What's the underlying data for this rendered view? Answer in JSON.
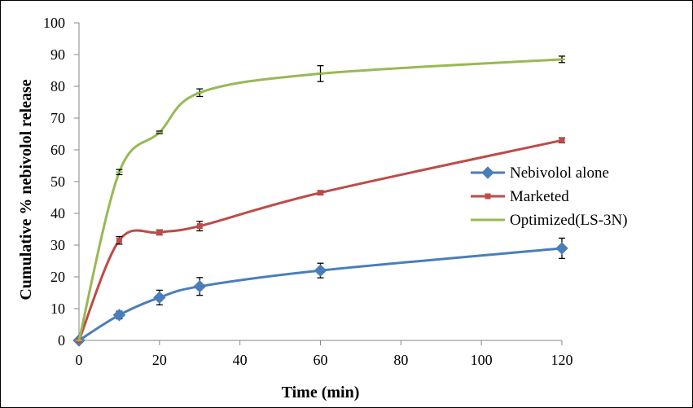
{
  "chart_data": {
    "type": "line",
    "title": "",
    "xlabel": "Time (min)",
    "ylabel": "Cumulative % nebivolol release",
    "x": [
      0,
      10,
      20,
      30,
      60,
      120
    ],
    "xlim": [
      0,
      120
    ],
    "ylim": [
      0,
      100
    ],
    "xticks": [
      0,
      20,
      40,
      60,
      80,
      100,
      120
    ],
    "yticks": [
      0,
      10,
      20,
      30,
      40,
      50,
      60,
      70,
      80,
      90,
      100
    ],
    "grid": false,
    "legend_position": "right",
    "series": [
      {
        "name": "Nebivolol alone",
        "color": "#4a7ebb",
        "marker": "diamond",
        "values": [
          0,
          8,
          13.5,
          17,
          22,
          29
        ],
        "errors": [
          0,
          1.2,
          2.3,
          2.8,
          2.3,
          3.2
        ]
      },
      {
        "name": "Marketed",
        "color": "#be4b48",
        "marker": "square",
        "values": [
          0,
          31.5,
          34,
          36,
          46.5,
          63
        ],
        "errors": [
          0,
          1.2,
          0.8,
          1.5,
          0.6,
          0.8
        ]
      },
      {
        "name": "Optimized(LS-3N)",
        "color": "#98b954",
        "marker": "dash",
        "values": [
          0,
          53,
          65.5,
          78,
          84,
          88.5
        ],
        "errors": [
          0,
          0.8,
          0.4,
          1.2,
          2.5,
          1.0
        ]
      }
    ]
  }
}
